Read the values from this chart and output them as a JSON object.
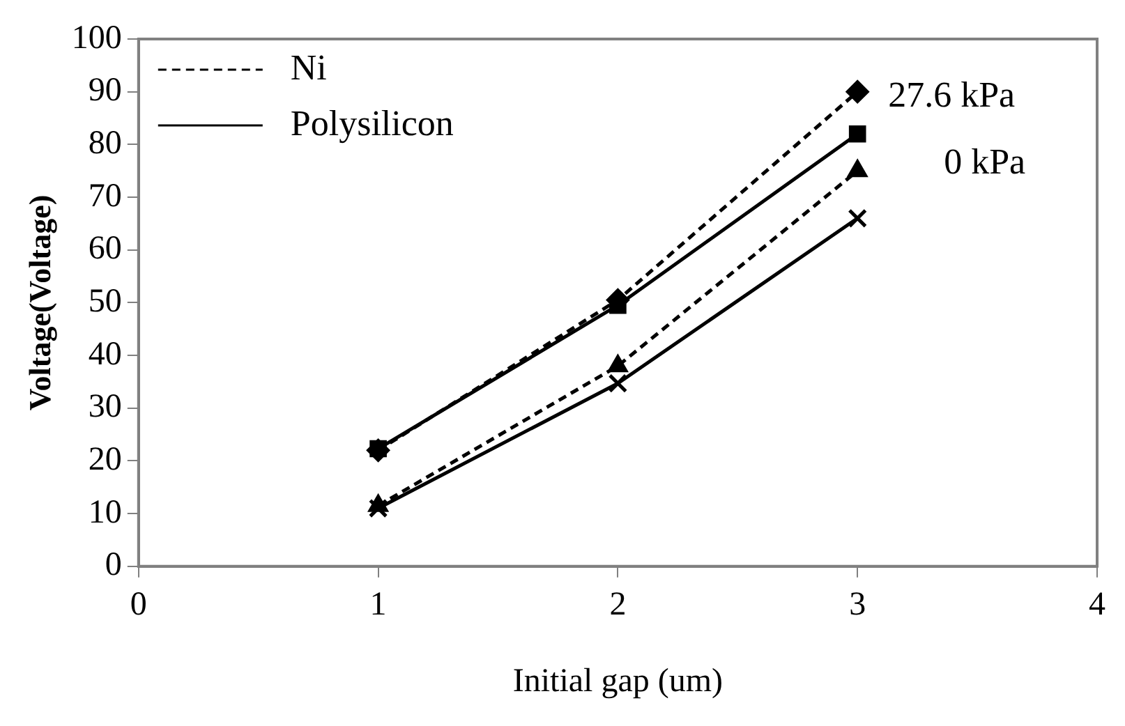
{
  "chart_data": {
    "type": "line",
    "xlabel": "Initial gap (um)",
    "ylabel": "Voltage(Voltage)",
    "xlim": [
      0,
      4
    ],
    "xticks": [
      0,
      1,
      2,
      3,
      4
    ],
    "ylim": [
      0,
      100
    ],
    "yticks": [
      0,
      10,
      20,
      30,
      40,
      50,
      60,
      70,
      80,
      90,
      100
    ],
    "grid": false,
    "legend": "top left",
    "x": [
      1,
      2,
      3
    ],
    "series": [
      {
        "name": "Ni",
        "color": "#000000",
        "values": [
          22,
          50.5,
          90
        ],
        "marker": "diamond",
        "line_style": "dashed"
      },
      {
        "name": "Polysilicon",
        "color": "#000000",
        "values": [
          22.3,
          49.5,
          82
        ],
        "marker": "square",
        "line_style": "solid"
      },
      {
        "color": "#000000",
        "values": [
          11.5,
          38,
          75
        ],
        "marker": "triangle",
        "line_style": "dashed"
      },
      {
        "color": "#000000",
        "values": [
          11,
          34.7,
          66
        ],
        "marker": "cross",
        "line_style": "solid"
      }
    ],
    "annotations": [
      {
        "text": "27.6 kPa",
        "x": 3,
        "y": 90
      },
      {
        "text": "0 kPa",
        "x": 3,
        "y": 75
      }
    ]
  }
}
